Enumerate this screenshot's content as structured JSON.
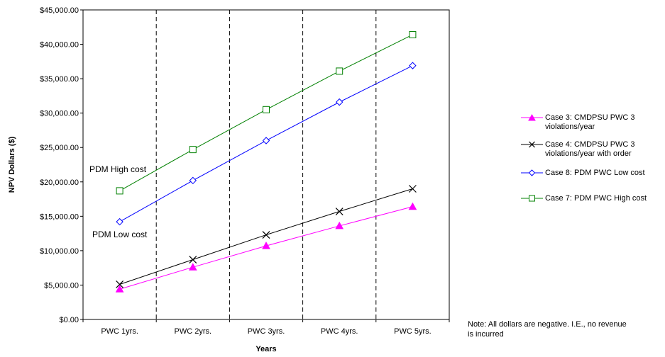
{
  "chart_data": {
    "type": "line",
    "xlabel": "Years",
    "ylabel": "NPV Dollars ($)",
    "categories": [
      "PWC 1yrs.",
      "PWC 2yrs.",
      "PWC 3yrs.",
      "PWC 4yrs.",
      "PWC 5yrs."
    ],
    "ylim": [
      0,
      45000
    ],
    "yticks": [
      "$0.00",
      "$5,000.00",
      "$10,000.00",
      "$15,000.00",
      "$20,000.00",
      "$25,000.00",
      "$30,000.00",
      "$35,000.00",
      "$40,000.00",
      "$45,000.00"
    ],
    "ytick_values": [
      0,
      5000,
      10000,
      15000,
      20000,
      25000,
      30000,
      35000,
      40000,
      45000
    ],
    "grid": "vertical dashed",
    "legend_position": "right",
    "series": [
      {
        "name": "Case 3: CMDPSU PWC 3 violations/year",
        "values": [
          4400,
          7600,
          10700,
          13600,
          16400
        ],
        "color": "#ff00ff",
        "marker": "filled-triangle"
      },
      {
        "name": "Case 4: CMDPSU PWC 3 violations/year with order",
        "values": [
          5100,
          8700,
          12300,
          15700,
          19000
        ],
        "color": "#000000",
        "marker": "x"
      },
      {
        "name": "Case 8: PDM PWC Low cost",
        "values": [
          14200,
          20200,
          26000,
          31600,
          36900
        ],
        "color": "#0000ff",
        "marker": "diamond"
      },
      {
        "name": "Case 7: PDM PWC High cost",
        "values": [
          18700,
          24700,
          30500,
          36100,
          41400
        ],
        "color": "#008000",
        "marker": "square"
      }
    ],
    "annotations": [
      {
        "text": "PDM High cost"
      },
      {
        "text": "PDM Low cost"
      }
    ],
    "note": "Note: All dollars are negative.  I.E., no revenue is incurred"
  }
}
